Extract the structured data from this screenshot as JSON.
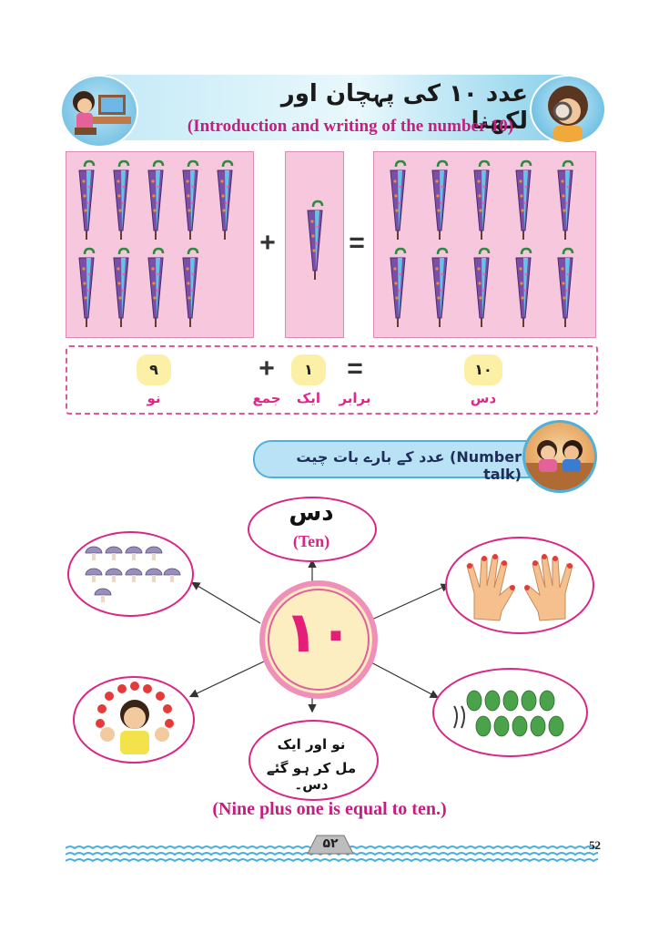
{
  "header": {
    "title_urdu": "عدد ۱۰ کی پہچان اور لکھنا",
    "title_english": "(Introduction and writing of the number 10)"
  },
  "umbrella_sum": {
    "left_count": 9,
    "middle_count": 1,
    "right_count": 10,
    "plus_sign": "+",
    "equals_sign": "="
  },
  "equation": {
    "nine_digit": "۹",
    "nine_word": "نو",
    "plus_sign": "+",
    "plus_word": "جمع",
    "one_digit": "۱",
    "one_word": "ایک",
    "equals_sign": "=",
    "equals_word": "برابر",
    "ten_digit": "۱۰",
    "ten_word": "دس"
  },
  "number_talk": {
    "label": "عدد کے بارے بات چیت (Number talk)"
  },
  "web": {
    "center_number": "۱۰",
    "ten_urdu": "دس",
    "ten_english": "(Ten)",
    "nine_plus_line1": "نو اور ایک",
    "nine_plus_line2": "مل کر ہو گئے دس۔",
    "mushroom_count": 10,
    "leaf_count": 10,
    "sentence": "(Nine plus one is equal to ten.)"
  },
  "footer": {
    "page_urdu": "۵۲",
    "page_number": "52"
  },
  "colors": {
    "pink_box": "#f6c7dd",
    "magenta": "#d92687",
    "banner_blue": "#7ccbe9",
    "digit_pill": "#fbf0a6"
  }
}
